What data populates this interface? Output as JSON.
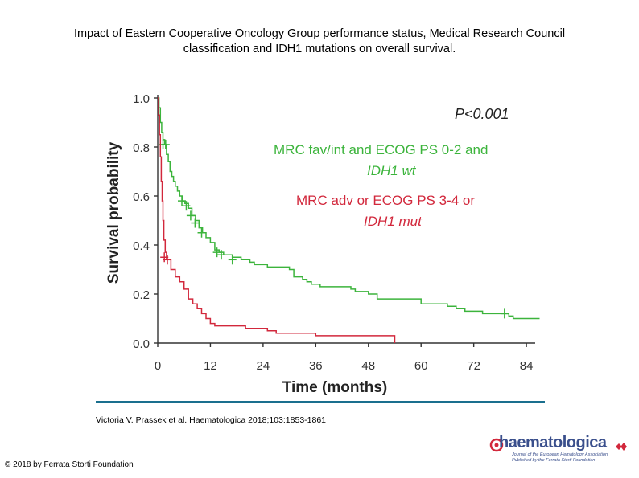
{
  "title": {
    "line1": "Impact of Eastern Cooperative Oncology Group performance status, Medical Research Council",
    "line2": "classification and IDH1 mutations on overall survival."
  },
  "chart_data": {
    "type": "line",
    "subtype": "kaplan-meier",
    "xlabel": "Time (months)",
    "ylabel": "Survival probability",
    "xlim": [
      0,
      86
    ],
    "ylim": [
      0,
      1.0
    ],
    "xticks": [
      "0",
      "12",
      "24",
      "36",
      "48",
      "60",
      "72",
      "84"
    ],
    "xtick_values": [
      0,
      12,
      24,
      36,
      48,
      60,
      72,
      84
    ],
    "yticks": [
      "0.0",
      "0.2",
      "0.4",
      "0.6",
      "0.8",
      "1.0"
    ],
    "ytick_values": [
      0.0,
      0.2,
      0.4,
      0.6,
      0.8,
      1.0
    ],
    "annotation_p": "P<0.001",
    "series": [
      {
        "name": "MRC fav/int and ECOG PS 0-2 and IDH1 wt",
        "label_line1": "MRC fav/int and ECOG PS 0-2 and",
        "label_line2": "IDH1 wt",
        "color": "#3cb43c",
        "steps": [
          [
            0,
            1.0
          ],
          [
            0.3,
            0.96
          ],
          [
            0.6,
            0.9
          ],
          [
            0.9,
            0.86
          ],
          [
            1.2,
            0.83
          ],
          [
            1.6,
            0.81
          ],
          [
            2.0,
            0.77
          ],
          [
            2.4,
            0.74
          ],
          [
            2.8,
            0.7
          ],
          [
            3.2,
            0.68
          ],
          [
            3.6,
            0.66
          ],
          [
            4.0,
            0.64
          ],
          [
            4.5,
            0.62
          ],
          [
            5.0,
            0.6
          ],
          [
            5.6,
            0.58
          ],
          [
            6.2,
            0.57
          ],
          [
            7.0,
            0.55
          ],
          [
            7.8,
            0.52
          ],
          [
            8.6,
            0.5
          ],
          [
            9.4,
            0.47
          ],
          [
            10.2,
            0.45
          ],
          [
            11.0,
            0.43
          ],
          [
            12.0,
            0.41
          ],
          [
            13.0,
            0.38
          ],
          [
            14.0,
            0.37
          ],
          [
            15.0,
            0.36
          ],
          [
            17.0,
            0.35
          ],
          [
            19.0,
            0.34
          ],
          [
            21.0,
            0.33
          ],
          [
            22.0,
            0.32
          ],
          [
            25.0,
            0.31
          ],
          [
            30.0,
            0.3
          ],
          [
            31.0,
            0.27
          ],
          [
            33.0,
            0.26
          ],
          [
            34.0,
            0.25
          ],
          [
            35.0,
            0.24
          ],
          [
            37.0,
            0.23
          ],
          [
            44.0,
            0.22
          ],
          [
            45.0,
            0.21
          ],
          [
            48.0,
            0.2
          ],
          [
            50.0,
            0.18
          ],
          [
            60.0,
            0.16
          ],
          [
            66.0,
            0.15
          ],
          [
            68.0,
            0.14
          ],
          [
            70.0,
            0.13
          ],
          [
            74.0,
            0.12
          ],
          [
            80.0,
            0.11
          ],
          [
            81.0,
            0.1
          ],
          [
            87.0,
            0.1
          ]
        ],
        "censors": [
          [
            1.2,
            0.81
          ],
          [
            1.8,
            0.81
          ],
          [
            5.5,
            0.58
          ],
          [
            6.5,
            0.56
          ],
          [
            7.5,
            0.52
          ],
          [
            8.5,
            0.49
          ],
          [
            10.0,
            0.45
          ],
          [
            13.5,
            0.37
          ],
          [
            14.5,
            0.36
          ],
          [
            17.0,
            0.34
          ],
          [
            79.0,
            0.12
          ]
        ]
      },
      {
        "name": "MRC adv or ECOG PS 3-4 or IDH1 mut",
        "label_line1": "MRC adv or ECOG PS 3-4 or",
        "label_line2": "IDH1 mut",
        "color": "#d2283c",
        "steps": [
          [
            0,
            1.0
          ],
          [
            0.2,
            0.93
          ],
          [
            0.4,
            0.85
          ],
          [
            0.6,
            0.76
          ],
          [
            0.8,
            0.66
          ],
          [
            1.0,
            0.58
          ],
          [
            1.2,
            0.5
          ],
          [
            1.4,
            0.42
          ],
          [
            1.7,
            0.37
          ],
          [
            2.0,
            0.34
          ],
          [
            3.0,
            0.3
          ],
          [
            4.0,
            0.27
          ],
          [
            5.0,
            0.25
          ],
          [
            6.0,
            0.22
          ],
          [
            7.0,
            0.18
          ],
          [
            8.0,
            0.16
          ],
          [
            9.0,
            0.14
          ],
          [
            10.0,
            0.12
          ],
          [
            11.0,
            0.1
          ],
          [
            12.0,
            0.08
          ],
          [
            13.0,
            0.07
          ],
          [
            20.0,
            0.06
          ],
          [
            24.0,
            0.06
          ],
          [
            25.0,
            0.05
          ],
          [
            27.0,
            0.04
          ],
          [
            29.0,
            0.04
          ],
          [
            36.0,
            0.03
          ],
          [
            54.0,
            0.03
          ],
          [
            54.0,
            0.0
          ]
        ],
        "censors": [
          [
            1.5,
            0.35
          ],
          [
            2.2,
            0.34
          ]
        ]
      }
    ]
  },
  "citation": "Victoria V. Prassek et al. Haematologica 2018;103:1853-1861",
  "copyright": "© 2018 by Ferrata Storti Foundation",
  "logo": {
    "wordmark": "haematologica",
    "subtitle_line1": "Journal of the European Hematology Association",
    "subtitle_line2": "Published by the Ferrata Storti Foundation"
  },
  "colors": {
    "accent_line": "#1a6f8e",
    "logo": "#3a4f8c"
  }
}
